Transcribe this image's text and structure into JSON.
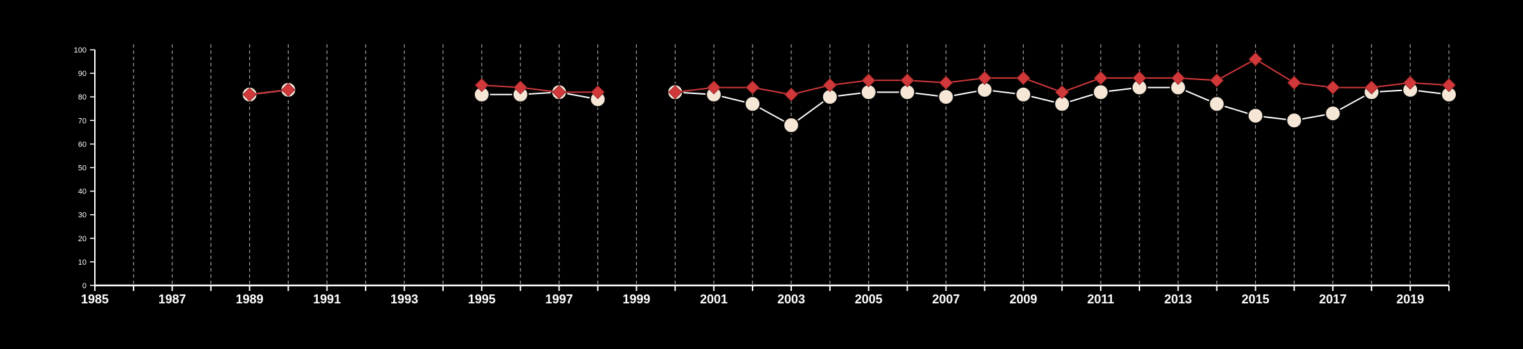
{
  "chart_data": {
    "type": "line",
    "title": "",
    "xlabel": "",
    "ylabel": "",
    "xlim": [
      1985,
      2020
    ],
    "ylim": [
      0,
      100
    ],
    "x_ticks": [
      1985,
      1986,
      1987,
      1988,
      1989,
      1990,
      1991,
      1992,
      1993,
      1994,
      1995,
      1996,
      1997,
      1998,
      1999,
      2000,
      2001,
      2002,
      2003,
      2004,
      2005,
      2006,
      2007,
      2008,
      2009,
      2010,
      2011,
      2012,
      2013,
      2014,
      2015,
      2016,
      2017,
      2018,
      2019,
      2020
    ],
    "x_tick_labels": [
      "1985",
      "1987",
      "1989",
      "1991",
      "1993",
      "1995",
      "1997",
      "1999",
      "2001",
      "2003",
      "2005",
      "2007",
      "2009",
      "2011",
      "2013",
      "2015",
      "2017",
      "2019"
    ],
    "x_tick_label_values": [
      1985,
      1987,
      1989,
      1991,
      1993,
      1995,
      1997,
      1999,
      2001,
      2003,
      2005,
      2007,
      2009,
      2011,
      2013,
      2015,
      2017,
      2019
    ],
    "y_ticks": [
      0,
      10,
      20,
      30,
      40,
      50,
      60,
      70,
      80,
      90,
      100
    ],
    "y_tick_labels": [
      "0",
      "10",
      "20",
      "30",
      "40",
      "50",
      "60",
      "70",
      "80",
      "90",
      "100"
    ],
    "vertical_gridlines": true,
    "gridline_style": "dashed",
    "legend": "none",
    "background_color": "#000000",
    "axis_color": "#ffffff",
    "series": [
      {
        "marker": "circle",
        "color": "#ffffff",
        "marker_fill": "#f5e6d6",
        "marker_stroke": "#000000",
        "points": [
          [
            1989,
            81
          ],
          [
            1990,
            83
          ],
          [
            1995,
            81
          ],
          [
            1996,
            81
          ],
          [
            1997,
            82
          ],
          [
            1998,
            79
          ],
          [
            2000,
            82
          ],
          [
            2001,
            81
          ],
          [
            2002,
            77
          ],
          [
            2003,
            68
          ],
          [
            2004,
            80
          ],
          [
            2005,
            82
          ],
          [
            2006,
            82
          ],
          [
            2007,
            80
          ],
          [
            2008,
            83
          ],
          [
            2009,
            81
          ],
          [
            2010,
            77
          ],
          [
            2011,
            82
          ],
          [
            2012,
            84
          ],
          [
            2013,
            84
          ],
          [
            2014,
            77
          ],
          [
            2015,
            72
          ],
          [
            2016,
            70
          ],
          [
            2017,
            73
          ],
          [
            2018,
            82
          ],
          [
            2019,
            83
          ],
          [
            2020,
            81
          ]
        ]
      },
      {
        "marker": "diamond",
        "color": "#d0383a",
        "marker_fill": "#d0383a",
        "points": [
          [
            1989,
            81
          ],
          [
            1990,
            83
          ],
          [
            1995,
            85
          ],
          [
            1996,
            84
          ],
          [
            1997,
            82
          ],
          [
            1998,
            82
          ],
          [
            2000,
            82
          ],
          [
            2001,
            84
          ],
          [
            2002,
            84
          ],
          [
            2003,
            81
          ],
          [
            2004,
            85
          ],
          [
            2005,
            87
          ],
          [
            2006,
            87
          ],
          [
            2007,
            86
          ],
          [
            2008,
            88
          ],
          [
            2009,
            88
          ],
          [
            2010,
            82
          ],
          [
            2011,
            88
          ],
          [
            2012,
            88
          ],
          [
            2013,
            88
          ],
          [
            2014,
            87
          ],
          [
            2015,
            96
          ],
          [
            2016,
            86
          ],
          [
            2017,
            84
          ],
          [
            2018,
            84
          ],
          [
            2019,
            86
          ],
          [
            2020,
            85
          ]
        ]
      }
    ]
  }
}
